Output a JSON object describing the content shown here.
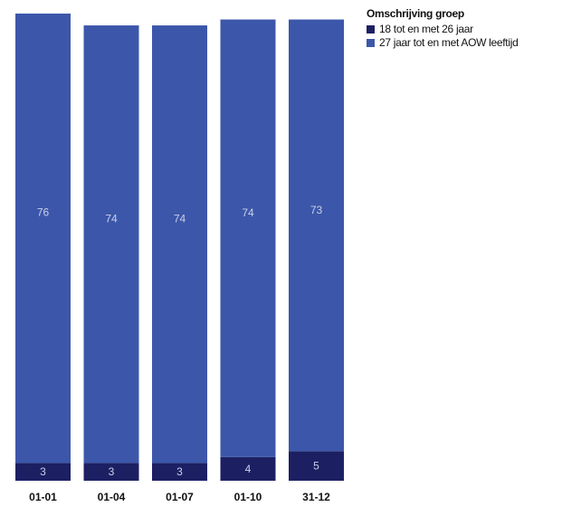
{
  "chart_data": {
    "type": "bar",
    "stacked": true,
    "categories": [
      "01-01",
      "01-04",
      "01-07",
      "01-10",
      "31-12"
    ],
    "series": [
      {
        "name": "18 tot en met 26 jaar",
        "values": [
          3,
          3,
          3,
          4,
          5
        ],
        "color": "#1c2063"
      },
      {
        "name": "27 jaar tot en met AOW leeftijd",
        "values": [
          76,
          74,
          74,
          74,
          73
        ],
        "color": "#3c57aa"
      }
    ],
    "legend_title": "Omschrijving groep",
    "legend_position": "top-right",
    "ylim": [
      0,
      79
    ],
    "grid": false,
    "data_label_color": "#c9cfe8"
  }
}
